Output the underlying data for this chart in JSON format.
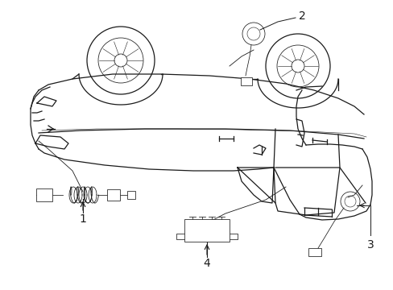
{
  "background_color": "#ffffff",
  "fig_width": 4.89,
  "fig_height": 3.6,
  "dpi": 100,
  "color": "#1a1a1a",
  "lw_main": 0.9,
  "lw_thin": 0.55,
  "lw_detail": 0.4
}
